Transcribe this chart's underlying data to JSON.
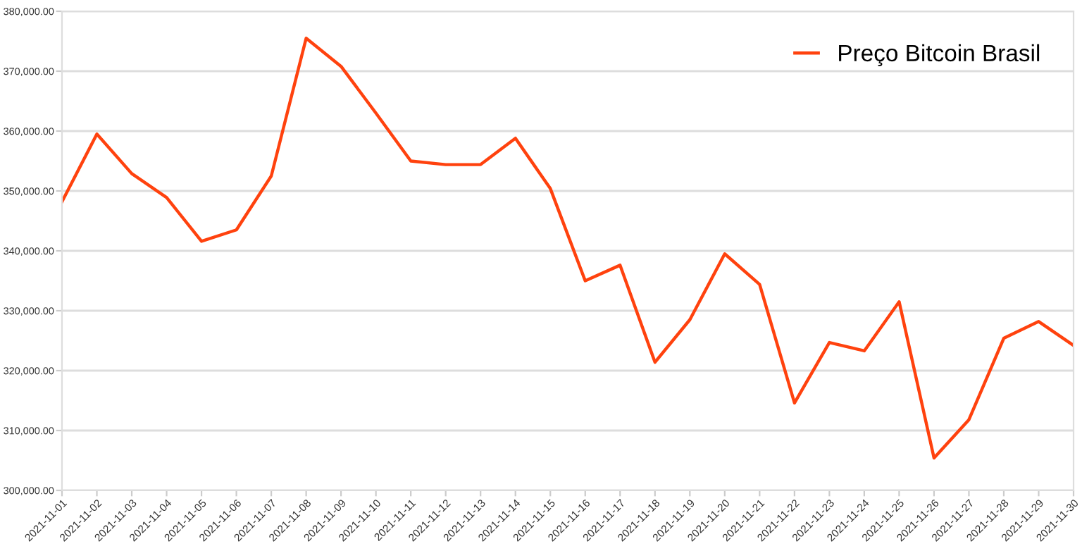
{
  "chart_data": {
    "type": "line",
    "categories": [
      "2021-11-01",
      "2021-11-02",
      "2021-11-03",
      "2021-11-04",
      "2021-11-05",
      "2021-11-06",
      "2021-11-07",
      "2021-11-08",
      "2021-11-09",
      "2021-11-10",
      "2021-11-11",
      "2021-11-12",
      "2021-11-13",
      "2021-11-14",
      "2021-11-15",
      "2021-11-16",
      "2021-11-17",
      "2021-11-18",
      "2021-11-19",
      "2021-11-20",
      "2021-11-21",
      "2021-11-22",
      "2021-11-23",
      "2021-11-24",
      "2021-11-25",
      "2021-11-26",
      "2021-11-27",
      "2021-11-28",
      "2021-11-29",
      "2021-11-30"
    ],
    "series": [
      {
        "name": "Preço Bitcoin Brasil",
        "color": "#ff420e",
        "values": [
          348200,
          359500,
          352900,
          348900,
          341600,
          343500,
          352500,
          375500,
          370800,
          363000,
          355000,
          354400,
          354400,
          358800,
          350400,
          335000,
          337600,
          321400,
          328500,
          339500,
          334400,
          314600,
          324700,
          323300,
          331500,
          305400,
          311800,
          325400,
          328200,
          324200
        ]
      }
    ],
    "ylim": [
      300000,
      380000
    ],
    "yticks": [
      {
        "value": 300000,
        "label": "300,000.00"
      },
      {
        "value": 310000,
        "label": "310,000.00"
      },
      {
        "value": 320000,
        "label": "320,000.00"
      },
      {
        "value": 330000,
        "label": "330,000.00"
      },
      {
        "value": 340000,
        "label": "340,000.00"
      },
      {
        "value": 350000,
        "label": "350,000.00"
      },
      {
        "value": 360000,
        "label": "360,000.00"
      },
      {
        "value": 370000,
        "label": "370,000.00"
      },
      {
        "value": 380000,
        "label": "380,000.00"
      }
    ],
    "grid": "y",
    "legend": "top right",
    "marker": "none",
    "line_style": "solid"
  }
}
